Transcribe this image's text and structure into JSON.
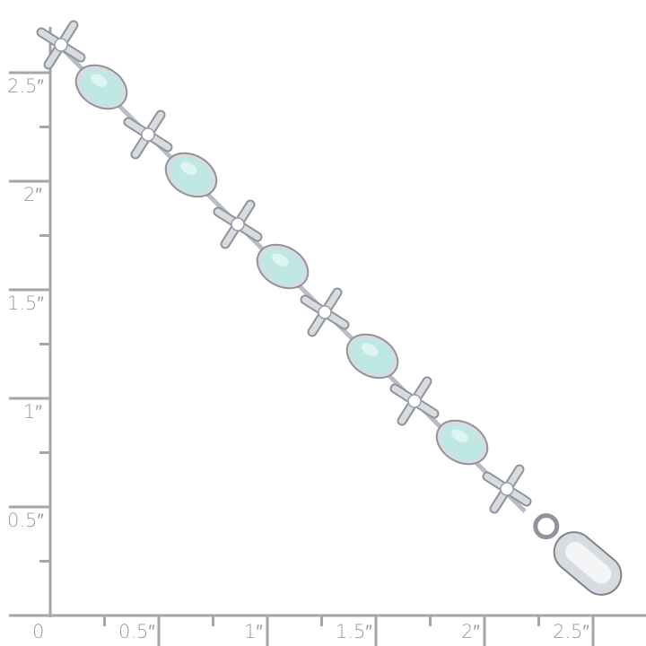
{
  "ruler": {
    "color": "#a6a6a6",
    "vertical_labels": [
      "0.5″",
      "1″",
      "1.5″",
      "2″",
      "2.5″"
    ],
    "horizontal_labels": [
      "0",
      "0.5″",
      "1″",
      "1.5″",
      "2″",
      "2.5″"
    ]
  },
  "product": {
    "stones": [
      "opal",
      "opal",
      "opal",
      "opal",
      "opal"
    ],
    "opal_color": "#bfe8e4",
    "metal_color": "#d8dbe0"
  }
}
